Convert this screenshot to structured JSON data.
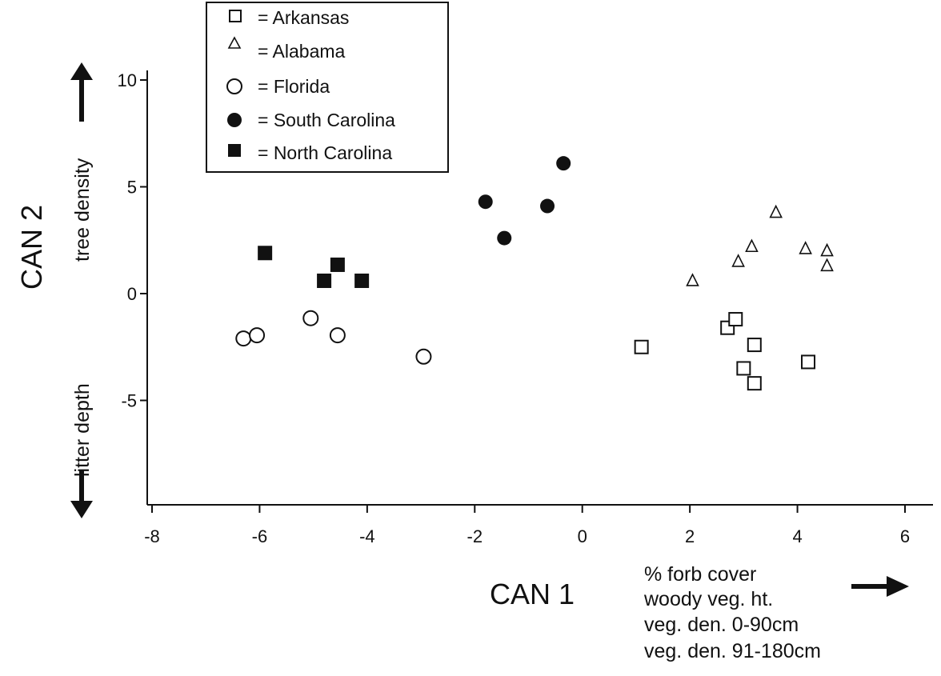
{
  "chart_data": {
    "type": "scatter",
    "xlabel": "CAN 1",
    "ylabel": "CAN 2",
    "xlim": [
      -8,
      6.5
    ],
    "ylim": [
      -10,
      10
    ],
    "xticks": [
      -8,
      -6,
      -4,
      -2,
      0,
      2,
      4,
      6
    ],
    "yticks": [
      -5,
      0,
      5,
      10
    ],
    "grid": false,
    "legend_position": "top-left",
    "y_axis_annotations": {
      "top": "tree density",
      "bottom": "litter depth"
    },
    "x_axis_annotation_lines": [
      "% forb cover",
      "woody veg. ht.",
      "veg. den. 0-90cm",
      "veg. den. 91-180cm"
    ],
    "series": [
      {
        "name": "Arkansas",
        "label": "= Arkansas",
        "marker": "open-square",
        "points": [
          [
            1.1,
            -2.5
          ],
          [
            2.7,
            -1.6
          ],
          [
            2.85,
            -1.2
          ],
          [
            3.0,
            -3.5
          ],
          [
            3.2,
            -2.4
          ],
          [
            3.2,
            -4.2
          ],
          [
            4.2,
            -3.2
          ]
        ]
      },
      {
        "name": "Alabama",
        "label": "= Alabama",
        "marker": "open-triangle",
        "points": [
          [
            2.05,
            0.6
          ],
          [
            2.9,
            1.5
          ],
          [
            3.15,
            2.2
          ],
          [
            3.6,
            3.8
          ],
          [
            4.15,
            2.1
          ],
          [
            4.55,
            2.0
          ],
          [
            4.55,
            1.3
          ]
        ]
      },
      {
        "name": "Florida",
        "label": "= Florida",
        "marker": "open-circle",
        "points": [
          [
            -6.3,
            -2.1
          ],
          [
            -6.05,
            -1.95
          ],
          [
            -5.05,
            -1.15
          ],
          [
            -4.55,
            -1.95
          ],
          [
            -2.95,
            -2.95
          ]
        ]
      },
      {
        "name": "South Carolina",
        "label": "= South Carolina",
        "marker": "filled-circle",
        "points": [
          [
            -1.8,
            4.3
          ],
          [
            -1.45,
            2.6
          ],
          [
            -0.65,
            4.1
          ],
          [
            -0.35,
            6.1
          ]
        ]
      },
      {
        "name": "North Carolina",
        "label": "= North Carolina",
        "marker": "filled-square",
        "points": [
          [
            -5.9,
            1.9
          ],
          [
            -4.8,
            0.6
          ],
          [
            -4.55,
            1.35
          ],
          [
            -4.1,
            0.6
          ]
        ]
      }
    ]
  }
}
